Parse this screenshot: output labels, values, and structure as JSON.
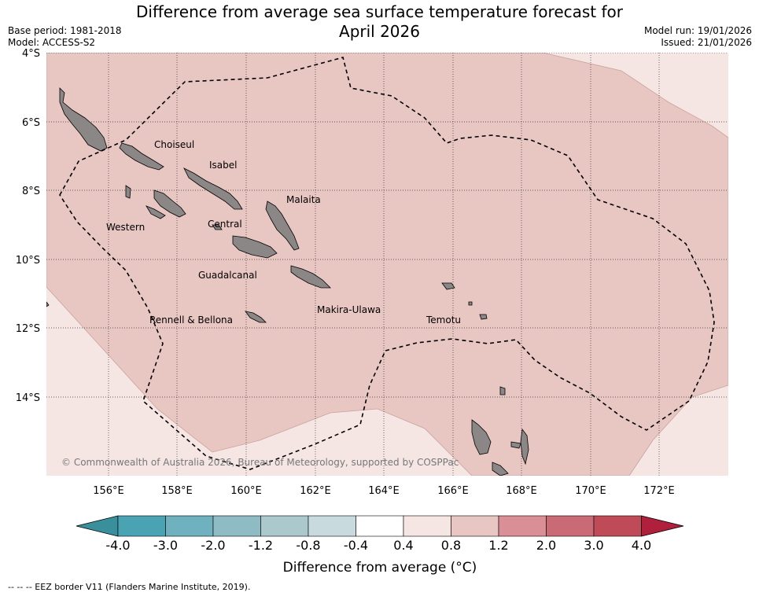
{
  "header": {
    "title_line1": "Difference from average sea surface temperature forecast for",
    "title_line2": "April 2026",
    "base_period": "Base period: 1981-2018",
    "model": "Model: ACCESS-S2",
    "model_run": "Model run: 19/01/2026",
    "issued": "Issued: 21/01/2026"
  },
  "map": {
    "lat_labels": [
      "4°S",
      "6°S",
      "8°S",
      "10°S",
      "12°S",
      "14°S"
    ],
    "lon_labels": [
      "156°E",
      "158°E",
      "160°E",
      "162°E",
      "164°E",
      "166°E",
      "168°E",
      "170°E",
      "172°E"
    ],
    "province_labels": [
      "Choiseul",
      "Isabel",
      "Malaita",
      "Western",
      "Central",
      "Guadalcanal",
      "Makira-Ulawa",
      "Rennell & Bellona",
      "Temotu"
    ],
    "copyright": "© Commonwealth of Australia 2026, Bureau of Meteorology, supported by COSPPac",
    "colors": {
      "anomaly_0_4_to_0_8": "#f5e6e4",
      "anomaly_0_8_to_1_2": "#e8c6c2",
      "land": "#8c8787",
      "eez_border": "#000000"
    }
  },
  "colorbar": {
    "ticks": [
      "-4.0",
      "-3.0",
      "-2.0",
      "-1.2",
      "-0.8",
      "-0.4",
      "0.4",
      "0.8",
      "1.2",
      "2.0",
      "3.0",
      "4.0"
    ],
    "colors": [
      "#3a8f9c",
      "#4aa3b3",
      "#6fb1be",
      "#8fbcc4",
      "#abc9cc",
      "#c9dade",
      "#ffffff",
      "#f5e6e4",
      "#e8c6c2",
      "#d98f95",
      "#c96a74",
      "#bf4b59",
      "#b01f3b"
    ],
    "label": "Difference from average (°C)"
  },
  "legend": {
    "eez_note": "--  --  -- EEZ border V11 (Flanders Marine Institute, 2019)."
  }
}
